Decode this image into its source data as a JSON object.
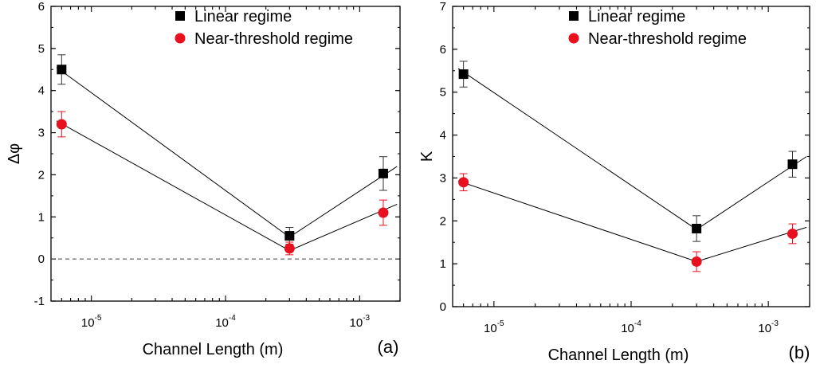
{
  "chart_data": [
    {
      "type": "scatter",
      "panel_label": "(a)",
      "xlabel": "Channel Length (m)",
      "ylabel": "Δφ",
      "xscale": "log",
      "xlim": [
        5e-06,
        0.002
      ],
      "ylim": [
        -1,
        6
      ],
      "y_ticks": [
        -1,
        0,
        1,
        2,
        3,
        4,
        5,
        6
      ],
      "x_ticks": [
        {
          "value": 1e-05,
          "base": "10",
          "exp": "-5"
        },
        {
          "value": 0.0001,
          "base": "10",
          "exp": "-4"
        },
        {
          "value": 0.001,
          "base": "10",
          "exp": "-3"
        }
      ],
      "reference_line": {
        "y": 0,
        "style": "dashed"
      },
      "x": [
        6e-06,
        0.0003,
        0.0015
      ],
      "series": [
        {
          "name": "Linear regime",
          "marker": "square",
          "color": "#000000",
          "values": [
            4.5,
            0.55,
            2.03
          ],
          "errors": [
            0.35,
            0.2,
            0.4
          ],
          "line_x": [
            5.5e-06,
            0.0003,
            0.0019
          ],
          "line_y": [
            4.55,
            0.52,
            2.2
          ]
        },
        {
          "name": "Near-threshold regime",
          "marker": "circle",
          "color": "#e8101e",
          "values": [
            3.2,
            0.25,
            1.1
          ],
          "errors": [
            0.3,
            0.15,
            0.3
          ],
          "line_x": [
            5.5e-06,
            0.0003,
            0.0019
          ],
          "line_y": [
            3.28,
            0.2,
            1.3
          ]
        }
      ],
      "legend_position": "top-right"
    },
    {
      "type": "scatter",
      "panel_label": "(b)",
      "xlabel": "Channel Length (m)",
      "ylabel": "K",
      "xscale": "log",
      "xlim": [
        5e-06,
        0.002
      ],
      "ylim": [
        0,
        7
      ],
      "y_ticks": [
        0,
        1,
        2,
        3,
        4,
        5,
        6,
        7
      ],
      "x_ticks": [
        {
          "value": 1e-05,
          "base": "10",
          "exp": "-5"
        },
        {
          "value": 0.0001,
          "base": "10",
          "exp": "-4"
        },
        {
          "value": 0.001,
          "base": "10",
          "exp": "-3"
        }
      ],
      "x": [
        6e-06,
        0.0003,
        0.0015
      ],
      "series": [
        {
          "name": "Linear regime",
          "marker": "square",
          "color": "#000000",
          "values": [
            5.42,
            1.82,
            3.32
          ],
          "errors": [
            0.3,
            0.3,
            0.3
          ],
          "line_x": [
            5.5e-06,
            0.0003,
            0.0019
          ],
          "line_y": [
            5.55,
            1.8,
            3.5
          ]
        },
        {
          "name": "Near-threshold regime",
          "marker": "circle",
          "color": "#e8101e",
          "values": [
            2.9,
            1.05,
            1.7
          ],
          "errors": [
            0.2,
            0.23,
            0.23
          ],
          "line_x": [
            5.5e-06,
            0.0003,
            0.0019
          ],
          "line_y": [
            2.93,
            1.05,
            1.85
          ]
        }
      ],
      "legend_position": "top-right"
    }
  ]
}
